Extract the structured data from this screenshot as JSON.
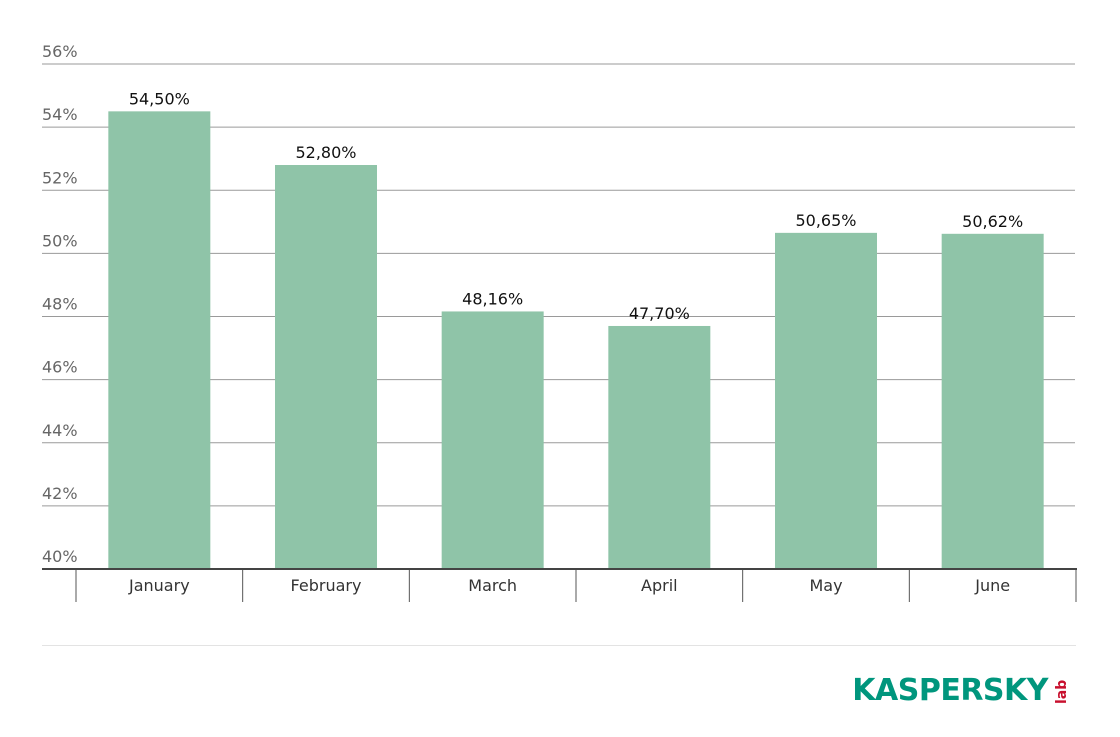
{
  "chart_data": {
    "type": "bar",
    "categories": [
      "January",
      "February",
      "March",
      "April",
      "May",
      "June"
    ],
    "values": [
      54.5,
      52.8,
      48.16,
      47.7,
      50.65,
      50.62
    ],
    "value_labels": [
      "54,50%",
      "52,80%",
      "48,16%",
      "47,70%",
      "50,65%",
      "50,62%"
    ],
    "color": "#8fc4a8",
    "ylim": [
      40,
      56
    ],
    "yticks": [
      {
        "value": 40,
        "label": "40%"
      },
      {
        "value": 42,
        "label": "42%"
      },
      {
        "value": 44,
        "label": "44%"
      },
      {
        "value": 46,
        "label": "46%"
      },
      {
        "value": 48,
        "label": "48%"
      },
      {
        "value": 50,
        "label": "50%"
      },
      {
        "value": 52,
        "label": "52%"
      },
      {
        "value": 54,
        "label": "54%"
      },
      {
        "value": 56,
        "label": "56%"
      }
    ],
    "grid": true
  },
  "logo": {
    "name": "KASPERSKY",
    "suffix": "lab"
  }
}
